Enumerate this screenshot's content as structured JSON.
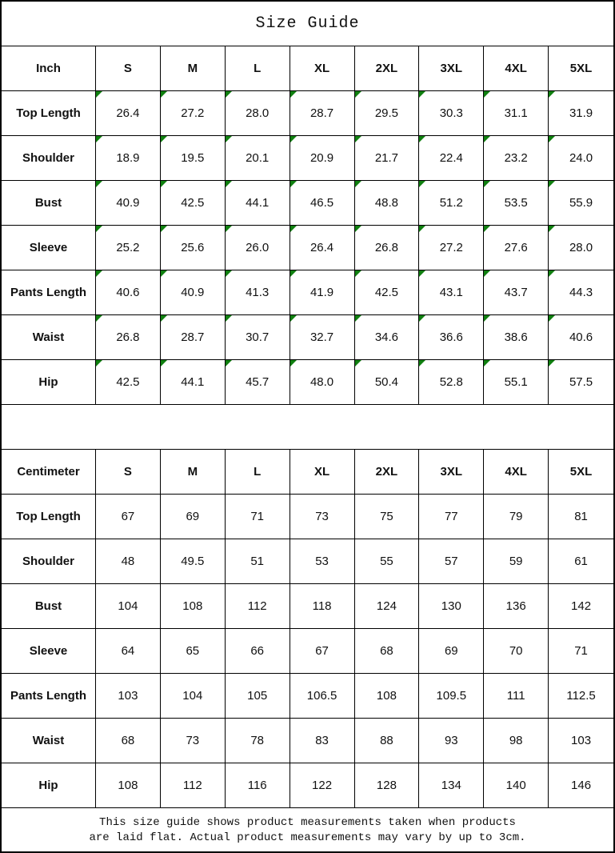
{
  "title": "Size Guide",
  "colors": {
    "marker_green": "#108010",
    "border": "#000000",
    "background": "#ffffff"
  },
  "tables": [
    {
      "unit": "Inch",
      "sizes": [
        "S",
        "M",
        "L",
        "XL",
        "2XL",
        "3XL",
        "4XL",
        "5XL"
      ],
      "has_corner_markers": true,
      "rows": [
        {
          "label": "Top Length",
          "values": [
            "26.4",
            "27.2",
            "28.0",
            "28.7",
            "29.5",
            "30.3",
            "31.1",
            "31.9"
          ]
        },
        {
          "label": "Shoulder",
          "values": [
            "18.9",
            "19.5",
            "20.1",
            "20.9",
            "21.7",
            "22.4",
            "23.2",
            "24.0"
          ]
        },
        {
          "label": "Bust",
          "values": [
            "40.9",
            "42.5",
            "44.1",
            "46.5",
            "48.8",
            "51.2",
            "53.5",
            "55.9"
          ]
        },
        {
          "label": "Sleeve",
          "values": [
            "25.2",
            "25.6",
            "26.0",
            "26.4",
            "26.8",
            "27.2",
            "27.6",
            "28.0"
          ]
        },
        {
          "label": "Pants Length",
          "values": [
            "40.6",
            "40.9",
            "41.3",
            "41.9",
            "42.5",
            "43.1",
            "43.7",
            "44.3"
          ]
        },
        {
          "label": "Waist",
          "values": [
            "26.8",
            "28.7",
            "30.7",
            "32.7",
            "34.6",
            "36.6",
            "38.6",
            "40.6"
          ]
        },
        {
          "label": "Hip",
          "values": [
            "42.5",
            "44.1",
            "45.7",
            "48.0",
            "50.4",
            "52.8",
            "55.1",
            "57.5"
          ]
        }
      ]
    },
    {
      "unit": "Centimeter",
      "sizes": [
        "S",
        "M",
        "L",
        "XL",
        "2XL",
        "3XL",
        "4XL",
        "5XL"
      ],
      "has_corner_markers": false,
      "rows": [
        {
          "label": "Top Length",
          "values": [
            "67",
            "69",
            "71",
            "73",
            "75",
            "77",
            "79",
            "81"
          ]
        },
        {
          "label": "Shoulder",
          "values": [
            "48",
            "49.5",
            "51",
            "53",
            "55",
            "57",
            "59",
            "61"
          ]
        },
        {
          "label": "Bust",
          "values": [
            "104",
            "108",
            "112",
            "118",
            "124",
            "130",
            "136",
            "142"
          ]
        },
        {
          "label": "Sleeve",
          "values": [
            "64",
            "65",
            "66",
            "67",
            "68",
            "69",
            "70",
            "71"
          ]
        },
        {
          "label": "Pants Length",
          "values": [
            "103",
            "104",
            "105",
            "106.5",
            "108",
            "109.5",
            "111",
            "112.5"
          ]
        },
        {
          "label": "Waist",
          "values": [
            "68",
            "73",
            "78",
            "83",
            "88",
            "93",
            "98",
            "103"
          ]
        },
        {
          "label": "Hip",
          "values": [
            "108",
            "112",
            "116",
            "122",
            "128",
            "134",
            "140",
            "146"
          ]
        }
      ]
    }
  ],
  "footer": {
    "line1": "This size guide shows product measurements taken when products",
    "line2": "are laid flat. Actual product measurements may vary by up to 3cm."
  }
}
